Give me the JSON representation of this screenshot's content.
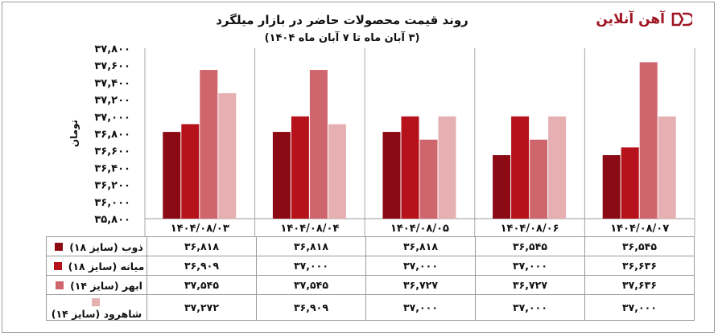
{
  "header": {
    "title": "روند قیمت محصولات حاضر در بازار میلگرد",
    "subtitle": "(۳ آبان ماه تا ۷ آبان ماه ۱۴۰۴)",
    "logo_text": "آهن آنلاین"
  },
  "colors": {
    "series": [
      "#8b0a14",
      "#b5121b",
      "#d0666d",
      "#e6b0b2"
    ],
    "logo": "#a01624",
    "axis": "#9a9a9a"
  },
  "chart_data": {
    "type": "bar",
    "categories": [
      "۱۴۰۴/۰۸/۰۳",
      "۱۴۰۴/۰۸/۰۴",
      "۱۴۰۴/۰۸/۰۵",
      "۱۴۰۴/۰۸/۰۶",
      "۱۴۰۴/۰۸/۰۷"
    ],
    "series": [
      {
        "name": "ذوب (سایز ۱۸)",
        "values": [
          36818,
          36818,
          36818,
          36545,
          36545
        ],
        "labels": [
          "۳۶,۸۱۸",
          "۳۶,۸۱۸",
          "۳۶,۸۱۸",
          "۳۶,۵۴۵",
          "۳۶,۵۴۵"
        ]
      },
      {
        "name": "میانه (سایز ۱۸)",
        "values": [
          36909,
          37000,
          37000,
          37000,
          36636
        ],
        "labels": [
          "۳۶,۹۰۹",
          "۳۷,۰۰۰",
          "۳۷,۰۰۰",
          "۳۷,۰۰۰",
          "۳۶,۶۳۶"
        ]
      },
      {
        "name": "ابهر (سایز ۱۴)",
        "values": [
          37545,
          37545,
          36727,
          36727,
          37636
        ],
        "labels": [
          "۳۷,۵۴۵",
          "۳۷,۵۴۵",
          "۳۶,۷۲۷",
          "۳۶,۷۲۷",
          "۳۷,۶۳۶"
        ]
      },
      {
        "name": "شاهرود (سایز ۱۴)",
        "values": [
          37272,
          36909,
          37000,
          37000,
          37000
        ],
        "labels": [
          "۳۷,۲۷۲",
          "۳۶,۹۰۹",
          "۳۷,۰۰۰",
          "۳۷,۰۰۰",
          "۳۷,۰۰۰"
        ]
      }
    ],
    "ylim": [
      35800,
      37800
    ],
    "yticks": [
      35800,
      36000,
      36200,
      36400,
      36600,
      36800,
      37000,
      37200,
      37400,
      37600,
      37800
    ],
    "ytick_labels": [
      "۳۵,۸۰۰",
      "۳۶,۰۰۰",
      "۳۶,۲۰۰",
      "۳۶,۴۰۰",
      "۳۶,۶۰۰",
      "۳۶,۸۰۰",
      "۳۷,۰۰۰",
      "۳۷,۲۰۰",
      "۳۷,۴۰۰",
      "۳۷,۶۰۰",
      "۳۷,۸۰۰"
    ],
    "ylabel": "تومان",
    "xlabel": "",
    "grid": false,
    "legend": "table-below"
  }
}
